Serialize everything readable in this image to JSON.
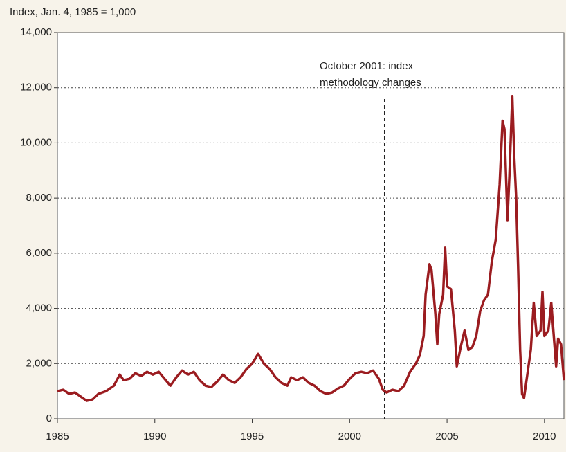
{
  "chart_data": {
    "type": "line",
    "y_label": "Index, Jan. 4, 1985 = 1,000",
    "color": "#9b1c20",
    "x": [
      1985.0,
      1985.3,
      1985.6,
      1985.9,
      1986.2,
      1986.5,
      1986.8,
      1987.1,
      1987.5,
      1987.9,
      1988.2,
      1988.4,
      1988.7,
      1989.0,
      1989.3,
      1989.6,
      1989.9,
      1990.2,
      1990.5,
      1990.8,
      1991.1,
      1991.4,
      1991.7,
      1992.0,
      1992.3,
      1992.6,
      1992.9,
      1993.2,
      1993.5,
      1993.8,
      1994.1,
      1994.4,
      1994.7,
      1995.0,
      1995.3,
      1995.6,
      1995.9,
      1996.2,
      1996.5,
      1996.8,
      1997.0,
      1997.3,
      1997.6,
      1997.9,
      1998.2,
      1998.5,
      1998.8,
      1999.1,
      1999.4,
      1999.7,
      2000.0,
      2000.3,
      2000.6,
      2000.9,
      2001.2,
      2001.5,
      2001.7,
      2001.9,
      2002.2,
      2002.5,
      2002.8,
      2003.1,
      2003.4,
      2003.6,
      2003.8,
      2003.9,
      2004.1,
      2004.2,
      2004.4,
      2004.5,
      2004.6,
      2004.8,
      2004.9,
      2005.0,
      2005.2,
      2005.4,
      2005.5,
      2005.7,
      2005.9,
      2006.1,
      2006.3,
      2006.5,
      2006.7,
      2006.9,
      2007.1,
      2007.3,
      2007.5,
      2007.7,
      2007.85,
      2007.95,
      2008.1,
      2008.2,
      2008.35,
      2008.45,
      2008.55,
      2008.65,
      2008.75,
      2008.85,
      2008.95,
      2009.1,
      2009.3,
      2009.45,
      2009.6,
      2009.8,
      2009.9,
      2010.0,
      2010.2,
      2010.35,
      2010.5,
      2010.6,
      2010.7,
      2010.85,
      2011.0
    ],
    "values": [
      1000,
      1050,
      900,
      950,
      800,
      650,
      700,
      900,
      1000,
      1200,
      1600,
      1400,
      1450,
      1650,
      1550,
      1700,
      1600,
      1700,
      1450,
      1200,
      1500,
      1750,
      1600,
      1700,
      1400,
      1200,
      1150,
      1350,
      1600,
      1400,
      1300,
      1500,
      1800,
      2000,
      2350,
      2000,
      1800,
      1500,
      1300,
      1200,
      1500,
      1400,
      1500,
      1300,
      1200,
      1000,
      900,
      950,
      1100,
      1200,
      1450,
      1650,
      1700,
      1650,
      1750,
      1450,
      1050,
      950,
      1050,
      1000,
      1200,
      1700,
      2000,
      2300,
      3000,
      4500,
      5600,
      5400,
      3800,
      2700,
      3800,
      4500,
      6200,
      4800,
      4700,
      3200,
      1900,
      2600,
      3200,
      2500,
      2600,
      3000,
      3900,
      4300,
      4500,
      5700,
      6500,
      8500,
      10800,
      10500,
      7200,
      8800,
      11700,
      9500,
      8000,
      5500,
      2500,
      900,
      750,
      1500,
      2500,
      4200,
      3000,
      3200,
      4600,
      3000,
      3200,
      4200,
      2800,
      1900,
      2900,
      2700,
      1400
    ],
    "xlim": [
      1985,
      2011
    ],
    "xticks": [
      1985,
      1990,
      1995,
      2000,
      2005,
      2010
    ],
    "ylim": [
      0,
      14000
    ],
    "yticks": [
      0,
      {
        "value": 2000,
        "label": "2,000"
      },
      {
        "value": 4000,
        "label": "4,000"
      },
      {
        "value": 6000,
        "label": "6,000"
      },
      {
        "value": 8000,
        "label": "8,000"
      },
      {
        "value": 10000,
        "label": "10,000"
      },
      {
        "value": 12000,
        "label": "12,000"
      },
      {
        "value": 14000,
        "label": "14,000"
      }
    ],
    "grid": true,
    "annotations": [
      {
        "text_lines": [
          "October 2001: index",
          "methodology changes"
        ],
        "x": 2001.8
      }
    ]
  }
}
